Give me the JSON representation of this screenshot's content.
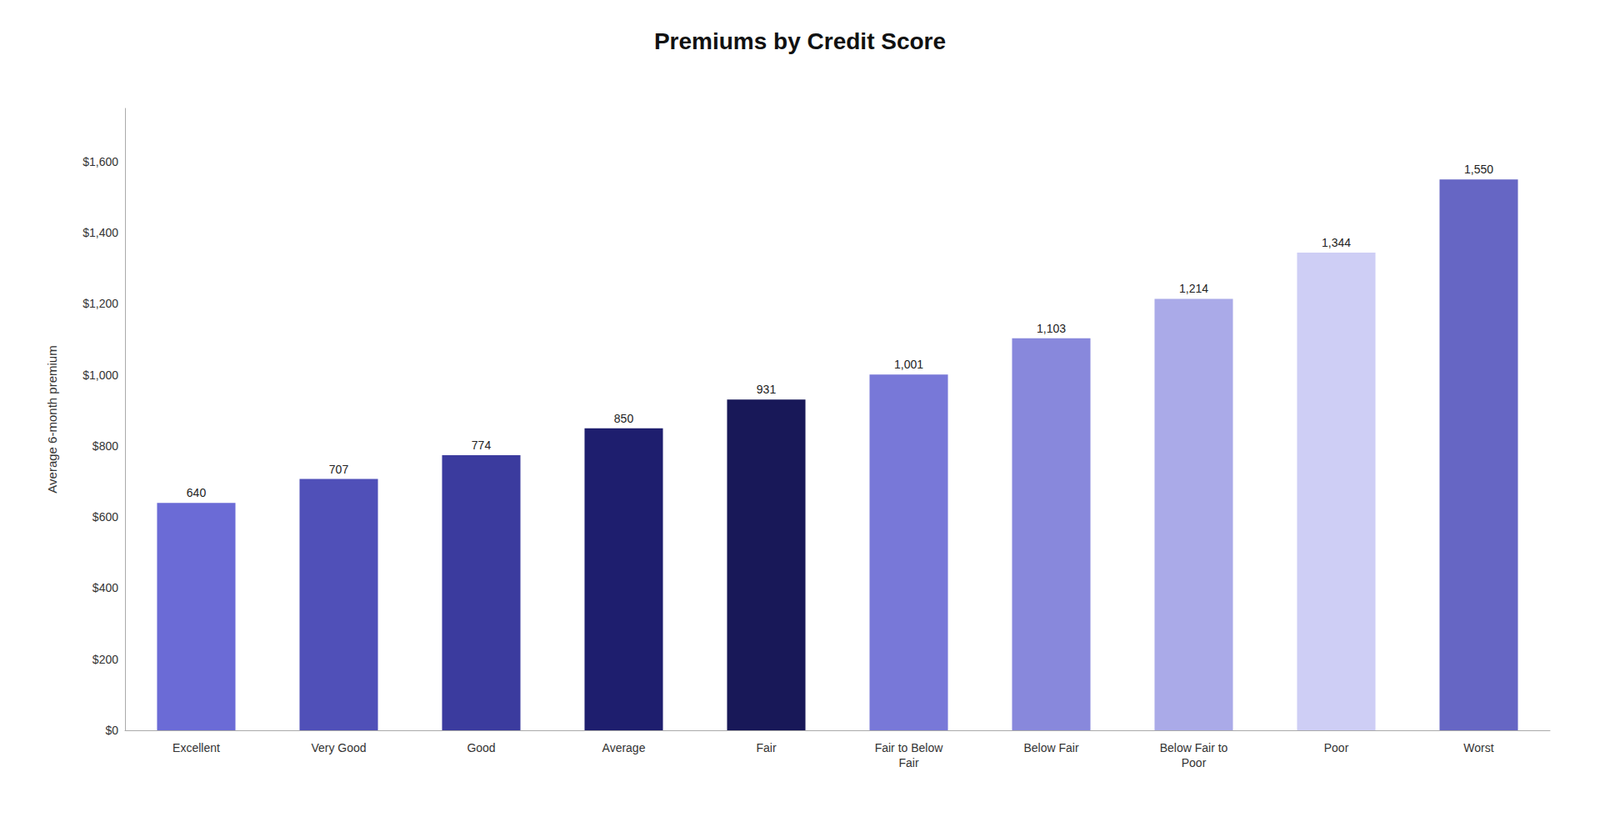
{
  "chart_data": {
    "type": "bar",
    "title": "Premiums by Credit Score",
    "ylabel": "Average 6-month premium",
    "categories": [
      "Excellent",
      "Very Good",
      "Good",
      "Average",
      "Fair",
      "Fair to Below\nFair",
      "Below Fair",
      "Below Fair to\nPoor",
      "Poor",
      "Worst"
    ],
    "values": [
      640,
      707,
      774,
      850,
      931,
      1001,
      1103,
      1214,
      1344,
      1550
    ],
    "value_labels": [
      "640",
      "707",
      "774",
      "850",
      "931",
      "1,001",
      "1,103",
      "1,214",
      "1,344",
      "1,550"
    ],
    "colors": [
      "#6B6BD6",
      "#5050B8",
      "#3B3B9E",
      "#1E1E6E",
      "#181858",
      "#7878D8",
      "#8888DC",
      "#AAAAE8",
      "#CECEF5",
      "#6666C4"
    ],
    "ylim": [
      0,
      1750
    ],
    "yticks": [
      {
        "value": 0,
        "label": "$0"
      },
      {
        "value": 200,
        "label": "$200"
      },
      {
        "value": 400,
        "label": "$400"
      },
      {
        "value": 600,
        "label": "$600"
      },
      {
        "value": 800,
        "label": "$800"
      },
      {
        "value": 1000,
        "label": "$1,000"
      },
      {
        "value": 1200,
        "label": "$1,200"
      },
      {
        "value": 1400,
        "label": "$1,400"
      },
      {
        "value": 1600,
        "label": "$1,600"
      }
    ],
    "grid": false,
    "data_labels": true
  }
}
